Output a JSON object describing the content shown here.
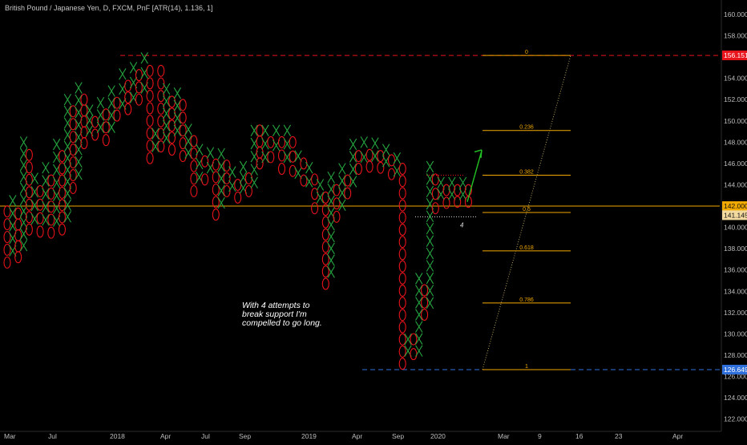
{
  "header": {
    "title": "British Pound / Japanese Yen, D, FXCM, PnF [ATR(14), 1.136, 1]"
  },
  "chart_data": {
    "type": "point-and-figure",
    "box_size": 1.136,
    "reversal": 1,
    "ylim": [
      121.3,
      161.2
    ],
    "y_ticks": [
      122,
      124,
      126,
      128,
      130,
      132,
      134,
      136,
      138,
      140,
      142,
      144,
      146,
      148,
      150,
      152,
      154,
      156,
      158,
      160
    ],
    "y_tick_labels": [
      "122.000",
      "124.000",
      "126.000",
      "128.000",
      "130.000",
      "132.000",
      "134.000",
      "136.000",
      "138.000",
      "140.000",
      "142.000",
      "144.000",
      "146.000",
      "148.000",
      "150.000",
      "152.000",
      "154.000",
      "156.000",
      "158.000",
      "160.000"
    ],
    "x_labels": [
      "Mar",
      "Jul",
      "2018",
      "Apr",
      "Jul",
      "Sep",
      "2019",
      "Apr",
      "Sep",
      "2020",
      "Mar",
      "9",
      "16",
      "23",
      "Apr"
    ],
    "price_labels": [
      {
        "value": 156.151,
        "text": "156.151",
        "color": "#e8131b"
      },
      {
        "value": 142.0,
        "text": "142.000",
        "color": "#f2a900"
      },
      {
        "value": 141.145,
        "text": "141.145",
        "color": "#f2d9a0"
      },
      {
        "value": 126.649,
        "text": "126.649",
        "color": "#2f6fdb"
      }
    ],
    "columns": [
      {
        "t": "O",
        "hi": 141.5,
        "lo": 136.7
      },
      {
        "t": "X",
        "hi": 142.5,
        "lo": 137.8
      },
      {
        "t": "O",
        "hi": 141.3,
        "lo": 137.2
      },
      {
        "t": "X",
        "hi": 148.0,
        "lo": 138.3
      },
      {
        "t": "O",
        "hi": 146.8,
        "lo": 139.8
      },
      {
        "t": "X",
        "hi": 144.6,
        "lo": 140.8
      },
      {
        "t": "O",
        "hi": 143.4,
        "lo": 139.6
      },
      {
        "t": "X",
        "hi": 145.6,
        "lo": 140.7
      },
      {
        "t": "O",
        "hi": 144.4,
        "lo": 139.5
      },
      {
        "t": "X",
        "hi": 147.8,
        "lo": 140.6
      },
      {
        "t": "O",
        "hi": 146.7,
        "lo": 139.8
      },
      {
        "t": "X",
        "hi": 152.0,
        "lo": 141.0
      },
      {
        "t": "O",
        "hi": 150.9,
        "lo": 143.7
      },
      {
        "t": "X",
        "hi": 153.1,
        "lo": 145.0
      },
      {
        "t": "O",
        "hi": 152.0,
        "lo": 147.9
      },
      {
        "t": "X",
        "hi": 151.0,
        "lo": 149.1
      },
      {
        "t": "O",
        "hi": 149.9,
        "lo": 148.7
      },
      {
        "t": "X",
        "hi": 151.7,
        "lo": 149.4
      },
      {
        "t": "O",
        "hi": 150.6,
        "lo": 148.2
      },
      {
        "t": "X",
        "hi": 152.8,
        "lo": 149.4
      },
      {
        "t": "O",
        "hi": 151.7,
        "lo": 150.5
      },
      {
        "t": "X",
        "hi": 154.4,
        "lo": 151.6
      },
      {
        "t": "O",
        "hi": 153.3,
        "lo": 151.1
      },
      {
        "t": "X",
        "hi": 155.0,
        "lo": 152.2
      },
      {
        "t": "O",
        "hi": 154.3,
        "lo": 152.0
      },
      {
        "t": "X",
        "hi": 155.9,
        "lo": 153.1
      },
      {
        "t": "O",
        "hi": 154.7,
        "lo": 146.5
      },
      {
        "t": "X",
        "hi": 148.8,
        "lo": 147.6
      },
      {
        "t": "O",
        "hi": 154.7,
        "lo": 147.6
      },
      {
        "t": "X",
        "hi": 153.0,
        "lo": 148.4
      },
      {
        "t": "O",
        "hi": 151.8,
        "lo": 147.3
      },
      {
        "t": "X",
        "hi": 152.6,
        "lo": 149.1
      },
      {
        "t": "O",
        "hi": 151.5,
        "lo": 146.7
      },
      {
        "t": "X",
        "hi": 149.2,
        "lo": 147.0
      },
      {
        "t": "O",
        "hi": 148.1,
        "lo": 143.4
      },
      {
        "t": "X",
        "hi": 147.3,
        "lo": 144.7
      },
      {
        "t": "O",
        "hi": 146.2,
        "lo": 144.5
      },
      {
        "t": "X",
        "hi": 147.0,
        "lo": 145.6
      },
      {
        "t": "O",
        "hi": 145.9,
        "lo": 141.2
      },
      {
        "t": "X",
        "hi": 146.9,
        "lo": 142.3
      },
      {
        "t": "O",
        "hi": 145.8,
        "lo": 143.4
      },
      {
        "t": "X",
        "hi": 145.2,
        "lo": 143.9
      },
      {
        "t": "O",
        "hi": 144.0,
        "lo": 142.8
      },
      {
        "t": "X",
        "hi": 145.7,
        "lo": 143.7
      },
      {
        "t": "O",
        "hi": 144.6,
        "lo": 143.4
      },
      {
        "t": "X",
        "hi": 149.1,
        "lo": 144.2
      },
      {
        "t": "O",
        "hi": 149.1,
        "lo": 146.0
      },
      {
        "t": "X",
        "hi": 149.1,
        "lo": 146.6
      },
      {
        "t": "O",
        "hi": 148.0,
        "lo": 146.6
      },
      {
        "t": "X",
        "hi": 149.1,
        "lo": 147.7
      },
      {
        "t": "O",
        "hi": 148.0,
        "lo": 145.5
      },
      {
        "t": "X",
        "hi": 149.1,
        "lo": 146.6
      },
      {
        "t": "O",
        "hi": 148.0,
        "lo": 145.3
      },
      {
        "t": "X",
        "hi": 146.7,
        "lo": 145.1
      },
      {
        "t": "O",
        "hi": 146.0,
        "lo": 144.4
      },
      {
        "t": "X",
        "hi": 145.6,
        "lo": 144.3
      },
      {
        "t": "O",
        "hi": 144.5,
        "lo": 141.8
      },
      {
        "t": "X",
        "hi": 144.0,
        "lo": 142.8
      },
      {
        "t": "O",
        "hi": 142.8,
        "lo": 134.7
      },
      {
        "t": "X",
        "hi": 144.7,
        "lo": 135.8
      },
      {
        "t": "O",
        "hi": 143.5,
        "lo": 141.0
      },
      {
        "t": "X",
        "hi": 145.5,
        "lo": 142.1
      },
      {
        "t": "O",
        "hi": 144.4,
        "lo": 143.2
      },
      {
        "t": "X",
        "hi": 147.8,
        "lo": 144.3
      },
      {
        "t": "O",
        "hi": 146.7,
        "lo": 145.5
      },
      {
        "t": "X",
        "hi": 148.0,
        "lo": 146.6
      },
      {
        "t": "O",
        "hi": 146.8,
        "lo": 145.7
      },
      {
        "t": "X",
        "hi": 147.9,
        "lo": 146.7
      },
      {
        "t": "O",
        "hi": 146.7,
        "lo": 145.6
      },
      {
        "t": "X",
        "hi": 147.3,
        "lo": 146.2
      },
      {
        "t": "O",
        "hi": 146.3,
        "lo": 145.0
      },
      {
        "t": "X",
        "hi": 146.5,
        "lo": 145.3
      },
      {
        "t": "O",
        "hi": 145.5,
        "lo": 127.2
      },
      {
        "t": "X",
        "hi": 129.5,
        "lo": 128.4
      },
      {
        "t": "O",
        "hi": 129.5,
        "lo": 128.1
      },
      {
        "t": "X",
        "hi": 135.2,
        "lo": 128.4
      },
      {
        "t": "O",
        "hi": 134.1,
        "lo": 131.8
      },
      {
        "t": "X",
        "hi": 145.7,
        "lo": 132.9
      },
      {
        "t": "O",
        "hi": 144.5,
        "lo": 141.8
      },
      {
        "t": "X",
        "hi": 144.2,
        "lo": 143.1
      },
      {
        "t": "O",
        "hi": 143.5,
        "lo": 142.3
      },
      {
        "t": "X",
        "hi": 144.2,
        "lo": 143.1
      },
      {
        "t": "O",
        "hi": 143.5,
        "lo": 142.4
      },
      {
        "t": "X",
        "hi": 144.2,
        "lo": 143.1
      },
      {
        "t": "O",
        "hi": 143.5,
        "lo": 142.4
      }
    ],
    "fib": {
      "levels": [
        {
          "ratio": "0",
          "value": 156.151
        },
        {
          "ratio": "0.236",
          "value": 149.1
        },
        {
          "ratio": "0.382",
          "value": 144.9
        },
        {
          "ratio": "0.5",
          "value": 141.4
        },
        {
          "ratio": "0.618",
          "value": 137.8
        },
        {
          "ratio": "0.786",
          "value": 132.9
        },
        {
          "ratio": "1",
          "value": 126.649
        }
      ]
    },
    "annotation": "With 4 attempts to\nbreak support I'm\ncompelled to go long.",
    "attempts_label": "4",
    "colors": {
      "x": "#26a641",
      "o": "#e8131b",
      "fib": "#f2a900",
      "resistance": "#e8131b",
      "support": "#2f6fdb",
      "arrow": "#22c322",
      "axis_text": "#bdbdbd"
    }
  }
}
